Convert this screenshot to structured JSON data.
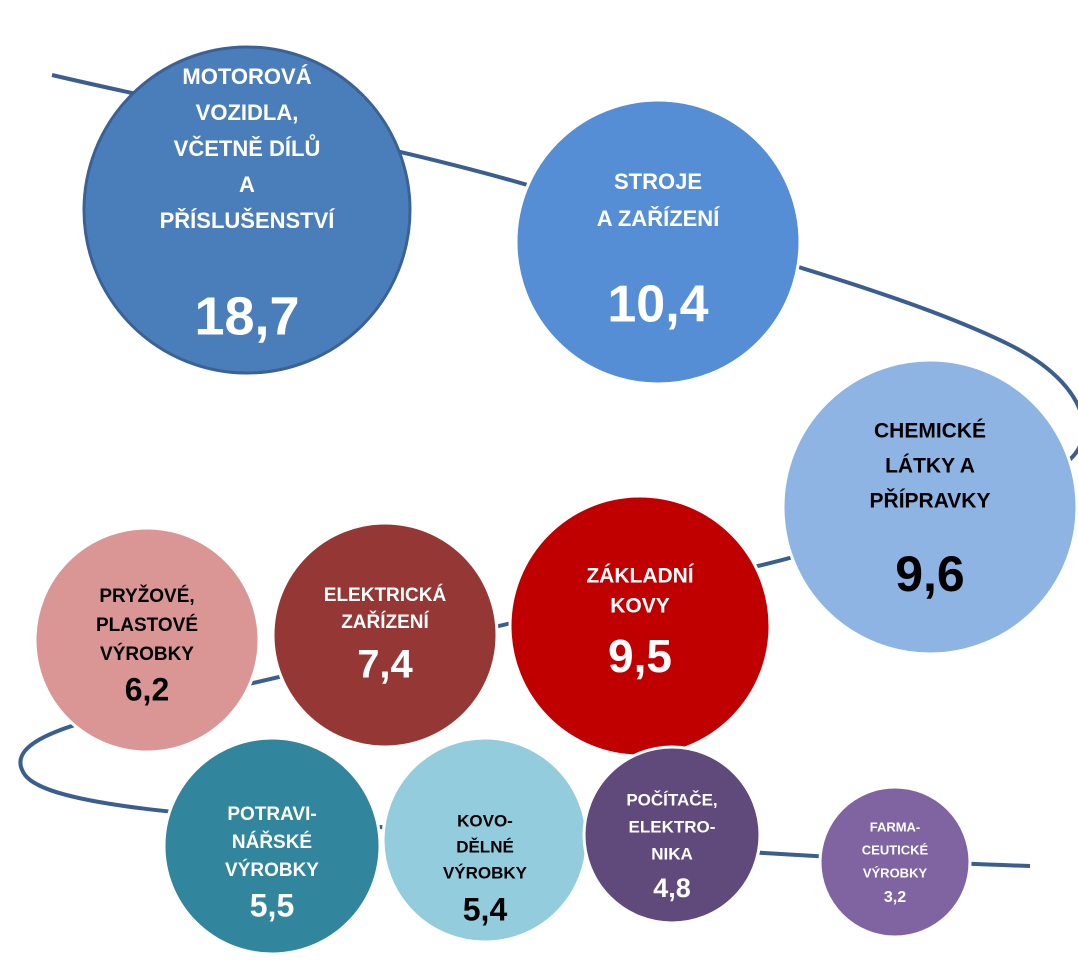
{
  "nodes": [
    {
      "label": [
        "MOTOROVÁ",
        "VOZIDLA,",
        "VČETNĚ DÍLŮ",
        "A",
        "PŘÍSLUŠENSTVÍ"
      ],
      "value": "18,7",
      "color": "#4a7ebb",
      "text_color": "#ffffff"
    },
    {
      "label": [
        "STROJE",
        "A ZAŘÍZENÍ"
      ],
      "value": "10,4",
      "color": "#558ed5",
      "text_color": "#ffffff"
    },
    {
      "label": [
        "CHEMICKÉ",
        "LÁTKY A",
        "PŘÍPRAVKY"
      ],
      "value": "9,6",
      "color": "#8eb4e3",
      "text_color": "#000000"
    },
    {
      "label": [
        "ZÁKLADNÍ",
        "KOVY"
      ],
      "value": "9,5",
      "color": "#c00000",
      "text_color": "#ffffff"
    },
    {
      "label": [
        "ELEKTRICKÁ",
        "ZAŘÍZENÍ"
      ],
      "value": "7,4",
      "color": "#953735",
      "text_color": "#ffffff"
    },
    {
      "label": [
        "PRYŽOVÉ,",
        "PLASTOVÉ",
        "VÝROBKY"
      ],
      "value": "6,2",
      "color": "#d99694",
      "text_color": "#000000"
    },
    {
      "label": [
        "POTRAVI-",
        "NÁŘSKÉ",
        "VÝROBKY"
      ],
      "value": "5,5",
      "color": "#31859c",
      "text_color": "#ffffff"
    },
    {
      "label": [
        "KOVO-",
        "DĚLNÉ",
        "VÝROBKY"
      ],
      "value": "5,4",
      "color": "#93cddd",
      "text_color": "#000000"
    },
    {
      "label": [
        "POČÍTAČE,",
        "ELEKTRO-",
        "NIKA"
      ],
      "value": "4,8",
      "color": "#604a7b",
      "text_color": "#ffffff"
    },
    {
      "label": [
        "FARMA-",
        "CEUTICKÉ",
        "VÝROBKY"
      ],
      "value": "3,2",
      "color": "#8064a2",
      "text_color": "#ffffff"
    }
  ]
}
